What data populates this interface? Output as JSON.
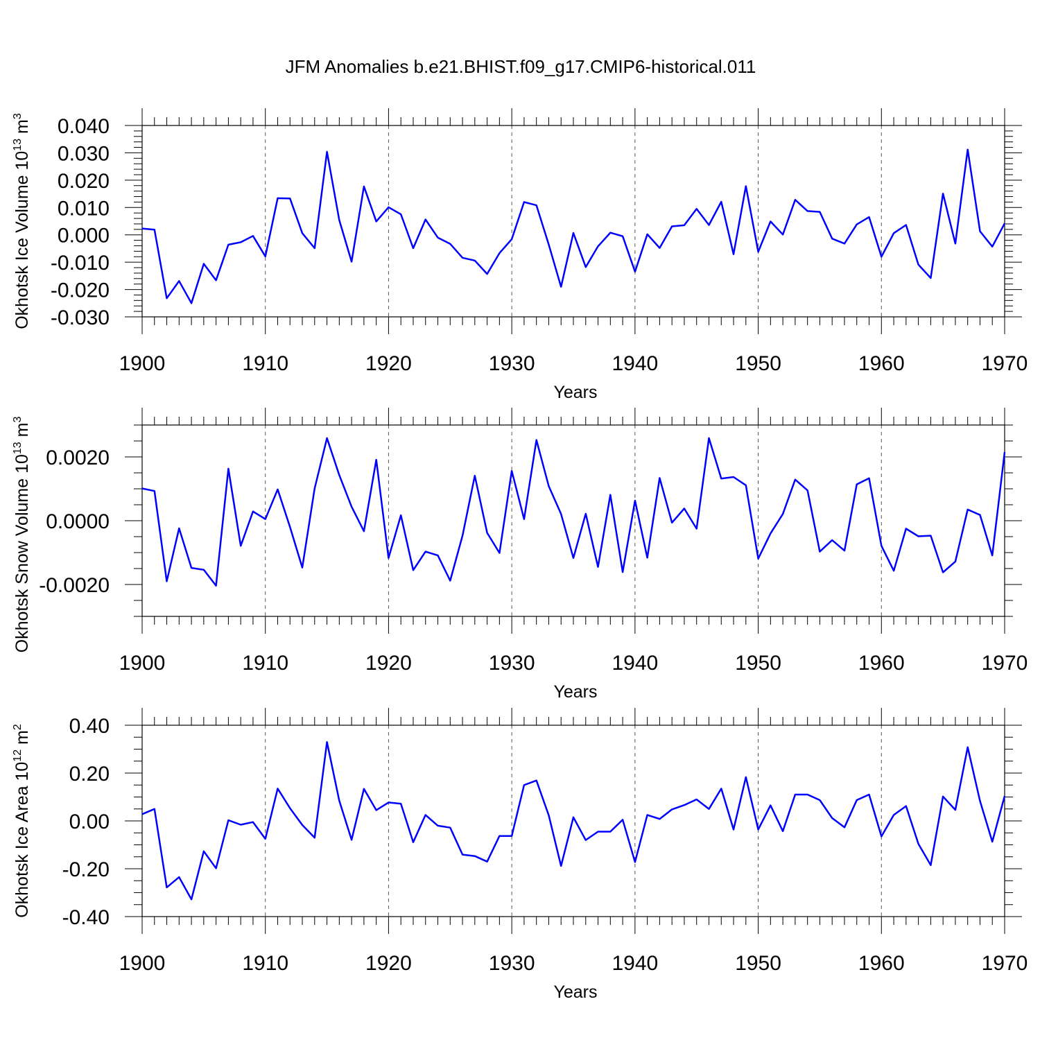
{
  "chart_data": {
    "type": "line",
    "title": "JFM Anomalies b.e21.BHIST.f09_g17.CMIP6-historical.011",
    "x": [
      1900,
      1901,
      1902,
      1903,
      1904,
      1905,
      1906,
      1907,
      1908,
      1909,
      1910,
      1911,
      1912,
      1913,
      1914,
      1915,
      1916,
      1917,
      1918,
      1919,
      1920,
      1921,
      1922,
      1923,
      1924,
      1925,
      1926,
      1927,
      1928,
      1929,
      1930,
      1931,
      1932,
      1933,
      1934,
      1935,
      1936,
      1937,
      1938,
      1939,
      1940,
      1941,
      1942,
      1943,
      1944,
      1945,
      1946,
      1947,
      1948,
      1949,
      1950,
      1951,
      1952,
      1953,
      1954,
      1955,
      1956,
      1957,
      1958,
      1959,
      1960,
      1961,
      1962,
      1963,
      1964,
      1965,
      1966,
      1967,
      1968,
      1969,
      1970
    ],
    "panels": [
      {
        "ylabel": "Okhotsk Ice Volume 10",
        "ylabel_sup": "13",
        "ylabel_unit": " m",
        "ylabel_unit_sup": "3",
        "xlabel": "Years",
        "xlim": [
          1900,
          1970
        ],
        "ylim": [
          -0.03,
          0.04
        ],
        "x_ticks": [
          "1900",
          "1910",
          "1920",
          "1930",
          "1940",
          "1950",
          "1960",
          "1970"
        ],
        "y_ticks": [
          "-0.030",
          "-0.020",
          "-0.010",
          "0.000",
          "0.010",
          "0.020",
          "0.030",
          "0.040"
        ],
        "series": [
          {
            "name": "Okhotsk Ice Volume",
            "color": "#0000ff",
            "values": [
              0.0023,
              0.0019,
              -0.0232,
              -0.0169,
              -0.025,
              -0.0106,
              -0.0166,
              -0.0036,
              -0.0027,
              -0.0004,
              -0.0079,
              0.0134,
              0.0133,
              0.0006,
              -0.0049,
              0.0304,
              0.0054,
              -0.0098,
              0.0177,
              0.0049,
              0.0101,
              0.0075,
              -0.0049,
              0.0056,
              -0.001,
              -0.0033,
              -0.0084,
              -0.0094,
              -0.0143,
              -0.0067,
              -0.0016,
              0.012,
              0.0108,
              -0.0036,
              -0.019,
              0.0007,
              -0.0118,
              -0.0042,
              0.0008,
              -0.0005,
              -0.0135,
              0.0002,
              -0.0048,
              0.0031,
              0.0035,
              0.0095,
              0.0036,
              0.0121,
              -0.0071,
              0.0178,
              -0.0062,
              0.0049,
              0.0001,
              0.0128,
              0.0087,
              0.0084,
              -0.0014,
              -0.0032,
              0.0038,
              0.0065,
              -0.008,
              0.0006,
              0.0036,
              -0.0109,
              -0.0158,
              0.0151,
              -0.0032,
              0.0312,
              0.0013,
              -0.0043,
              0.0042
            ]
          }
        ]
      },
      {
        "ylabel": "Okhotsk Snow Volume 10",
        "ylabel_sup": "13",
        "ylabel_unit": " m",
        "ylabel_unit_sup": "3",
        "xlabel": "Years",
        "xlim": [
          1900,
          1970
        ],
        "ylim": [
          -0.003,
          0.003
        ],
        "x_ticks": [
          "1900",
          "1910",
          "1920",
          "1930",
          "1940",
          "1950",
          "1960",
          "1970"
        ],
        "y_ticks": [
          "-0.0020",
          "0.0000",
          "0.0020"
        ],
        "series": [
          {
            "name": "Okhotsk Snow Volume",
            "color": "#0000ff",
            "values": [
              0.00101,
              0.00093,
              -0.0019,
              -0.00024,
              -0.00148,
              -0.00154,
              -0.00204,
              0.00163,
              -0.00079,
              0.00029,
              5e-05,
              0.00098,
              -0.0002,
              -0.00147,
              0.00101,
              0.00259,
              0.00143,
              0.00044,
              -0.00033,
              0.00191,
              -0.00117,
              0.00017,
              -0.00155,
              -0.00097,
              -0.00109,
              -0.00188,
              -0.00047,
              0.00141,
              -0.00038,
              -0.00101,
              0.00156,
              5e-05,
              0.00253,
              0.00108,
              0.00021,
              -0.00117,
              0.00022,
              -0.00145,
              0.00081,
              -0.00161,
              0.00063,
              -0.00116,
              0.00134,
              -6e-05,
              0.00038,
              -0.00025,
              0.00259,
              0.00132,
              0.00137,
              0.00111,
              -0.00119,
              -0.0004,
              0.00021,
              0.00129,
              0.00095,
              -0.00097,
              -0.00061,
              -0.00094,
              0.00114,
              0.00133,
              -0.00079,
              -0.00157,
              -0.00025,
              -0.00049,
              -0.00047,
              -0.00162,
              -0.00128,
              0.00035,
              0.00018,
              -0.00109,
              0.00215
            ]
          }
        ]
      },
      {
        "ylabel": "Okhotsk Ice Area 10",
        "ylabel_sup": "12",
        "ylabel_unit": " m",
        "ylabel_unit_sup": "2",
        "xlabel": "Years",
        "xlim": [
          1900,
          1970
        ],
        "ylim": [
          -0.4,
          0.4
        ],
        "x_ticks": [
          "1900",
          "1910",
          "1920",
          "1930",
          "1940",
          "1950",
          "1960",
          "1970"
        ],
        "y_ticks": [
          "-0.40",
          "-0.20",
          "0.00",
          "0.20",
          "0.40"
        ],
        "series": [
          {
            "name": "Okhotsk Ice Area",
            "color": "#0000ff",
            "values": [
              0.028,
              0.05,
              -0.278,
              -0.235,
              -0.328,
              -0.127,
              -0.198,
              0.003,
              -0.016,
              -0.005,
              -0.075,
              0.135,
              0.053,
              -0.017,
              -0.07,
              0.33,
              0.085,
              -0.079,
              0.134,
              0.045,
              0.077,
              0.072,
              -0.089,
              0.025,
              -0.02,
              -0.028,
              -0.141,
              -0.147,
              -0.17,
              -0.063,
              -0.063,
              0.15,
              0.169,
              0.023,
              -0.188,
              0.015,
              -0.08,
              -0.045,
              -0.045,
              0.005,
              -0.172,
              0.025,
              0.008,
              0.048,
              0.066,
              0.09,
              0.05,
              0.135,
              -0.036,
              0.183,
              -0.036,
              0.065,
              -0.043,
              0.11,
              0.11,
              0.087,
              0.012,
              -0.027,
              0.087,
              0.11,
              -0.065,
              0.025,
              0.062,
              -0.096,
              -0.185,
              0.102,
              0.046,
              0.308,
              0.083,
              -0.087,
              0.104
            ]
          }
        ]
      }
    ]
  }
}
